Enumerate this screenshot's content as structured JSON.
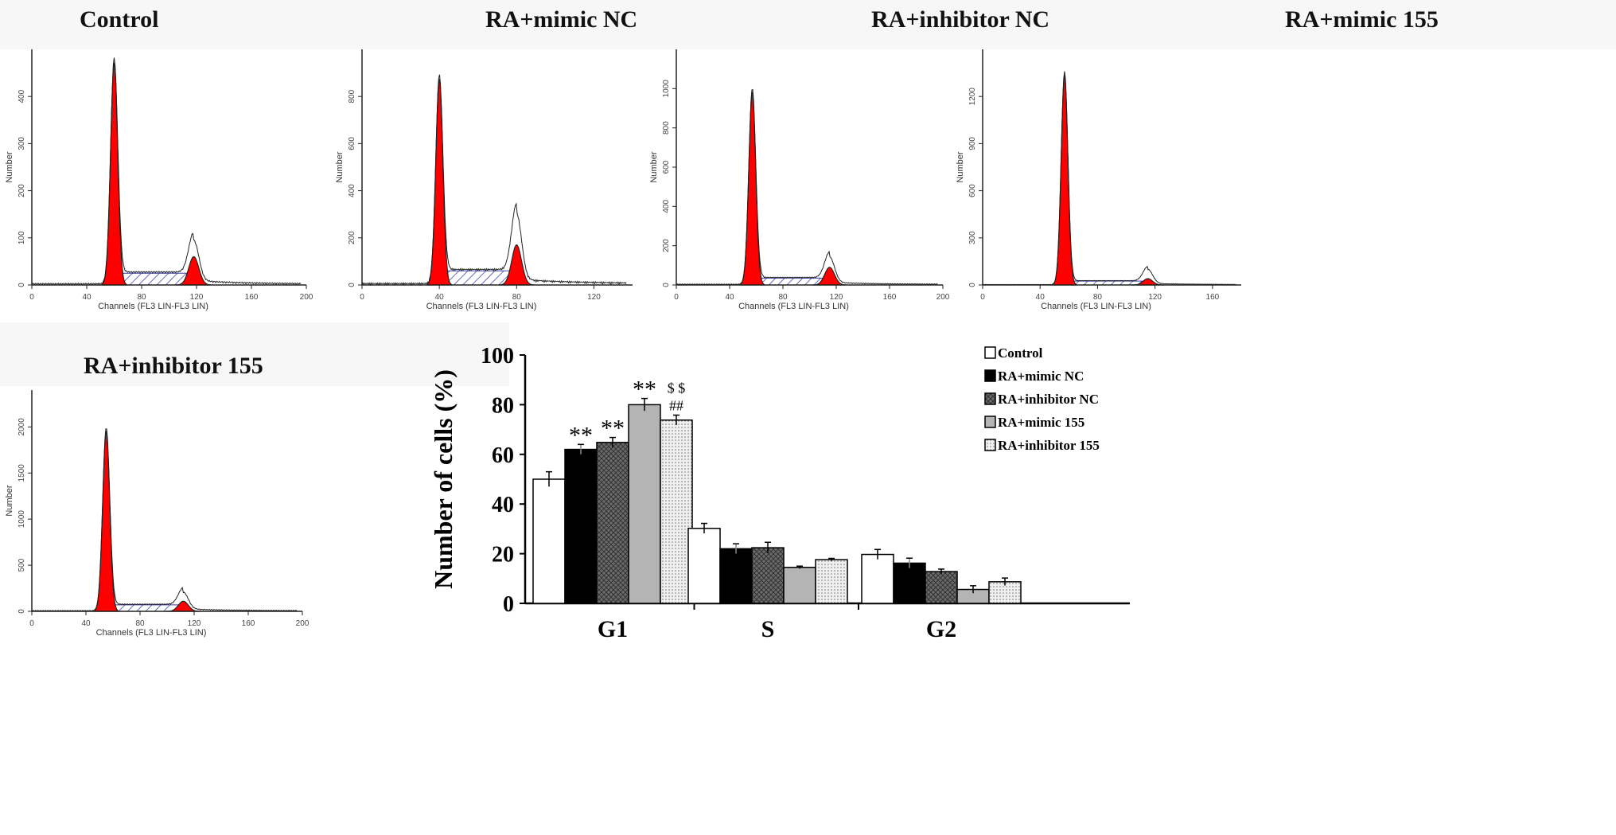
{
  "chart_data": [
    {
      "type": "histogram",
      "title": "Control",
      "xlabel": "Channels (FL3 LIN-FL3 LIN)",
      "ylabel": "Number",
      "xlim": [
        0,
        200
      ],
      "ylim": [
        0,
        500
      ],
      "xticks": [
        "0",
        "40",
        "80",
        "120",
        "160",
        "200"
      ],
      "yticks": [
        "0",
        "100",
        "200",
        "300",
        "400"
      ],
      "g1_peak": {
        "channel": 60,
        "count": 470
      },
      "g2_peak": {
        "channel": 118,
        "count": 60
      },
      "raw_g2_max": 85,
      "s_level": 25
    },
    {
      "type": "histogram",
      "title": "RA+mimic NC",
      "xlabel": "Channels (FL3 LIN-FL3 LIN)",
      "ylabel": "Number",
      "xlim": [
        0,
        140
      ],
      "ylim": [
        0,
        1000
      ],
      "xticks": [
        "0",
        "40",
        "80",
        "120"
      ],
      "yticks": [
        "0",
        "200",
        "400",
        "600",
        "800"
      ],
      "g1_peak": {
        "channel": 40,
        "count": 870
      },
      "g2_peak": {
        "channel": 80,
        "count": 170
      },
      "raw_g2_max": 280,
      "s_level": 60
    },
    {
      "type": "histogram",
      "title": "RA+inhibitor NC",
      "xlabel": "Channels (FL3 LIN-FL3 LIN)",
      "ylabel": "Number",
      "xlim": [
        0,
        200
      ],
      "ylim": [
        0,
        1200
      ],
      "xticks": [
        "0",
        "40",
        "80",
        "120",
        "160",
        "200"
      ],
      "yticks": [
        "0",
        "200",
        "400",
        "600",
        "800",
        "1000"
      ],
      "g1_peak": {
        "channel": 57,
        "count": 980
      },
      "g2_peak": {
        "channel": 115,
        "count": 90
      },
      "raw_g2_max": 130,
      "s_level": 35
    },
    {
      "type": "histogram",
      "title": "RA+mimic 155",
      "xlabel": "Channels (FL3 LIN-FL3 LIN)",
      "ylabel": "Number",
      "xlim": [
        0,
        180
      ],
      "ylim": [
        0,
        1500
      ],
      "xticks": [
        "0",
        "40",
        "80",
        "120",
        "160"
      ],
      "yticks": [
        "0",
        "300",
        "600",
        "900",
        "1200"
      ],
      "g1_peak": {
        "channel": 57,
        "count": 1330
      },
      "g2_peak": {
        "channel": 115,
        "count": 40
      },
      "raw_g2_max": 90,
      "s_level": 25
    },
    {
      "type": "histogram",
      "title": "RA+inhibitor 155",
      "xlabel": "Channels (FL3 LIN-FL3 LIN)",
      "ylabel": "Number",
      "xlim": [
        0,
        200
      ],
      "ylim": [
        0,
        2400
      ],
      "xticks": [
        "0",
        "40",
        "80",
        "120",
        "160",
        "200"
      ],
      "yticks": [
        "0",
        "500",
        "1000",
        "1500",
        "2000"
      ],
      "g1_peak": {
        "channel": 55,
        "count": 1950
      },
      "g2_peak": {
        "channel": 112,
        "count": 110
      },
      "raw_g2_max": 180,
      "s_level": 70
    },
    {
      "type": "bar",
      "title": "",
      "xlabel": "",
      "ylabel": "Number of cells (%)",
      "ylim": [
        0,
        100
      ],
      "yticks": [
        "0",
        "20",
        "40",
        "60",
        "80",
        "100"
      ],
      "categories": [
        "G1",
        "S",
        "G2"
      ],
      "legend_position": "top-right",
      "series": [
        {
          "name": "Control",
          "values": [
            50,
            30.2,
            19.7
          ],
          "errors": [
            3,
            2,
            2
          ],
          "fill": "#ffffff",
          "pattern": "none"
        },
        {
          "name": "RA+mimic NC",
          "values": [
            62,
            22,
            16.2
          ],
          "errors": [
            2,
            2,
            2
          ],
          "fill": "#000000",
          "pattern": "none"
        },
        {
          "name": "RA+inhibitor NC",
          "values": [
            64.8,
            22.4,
            12.8
          ],
          "errors": [
            2,
            2.2,
            1
          ],
          "fill": "#6a6a6a",
          "pattern": "crosshatch"
        },
        {
          "name": "RA+mimic 155",
          "values": [
            80,
            14.5,
            5.6
          ],
          "errors": [
            2.5,
            0.5,
            1.5
          ],
          "fill": "#b4b4b4",
          "pattern": "none"
        },
        {
          "name": "RA+inhibitor 155",
          "values": [
            73.8,
            17.6,
            8.7
          ],
          "errors": [
            2,
            0.5,
            1.5
          ],
          "fill": "#e6e6e6",
          "pattern": "dots"
        }
      ],
      "annotations": [
        {
          "category": "G1",
          "series": "RA+mimic NC",
          "text": "**"
        },
        {
          "category": "G1",
          "series": "RA+inhibitor NC",
          "text": "**"
        },
        {
          "category": "G1",
          "series": "RA+mimic 155",
          "text": "**"
        },
        {
          "category": "G1",
          "series": "RA+inhibitor 155",
          "text": "##"
        },
        {
          "category": "G1",
          "series": "RA+inhibitor 155",
          "text": "$ $"
        }
      ]
    }
  ],
  "colors": {
    "g_peak": "#ff0000",
    "s_phase": "#3a3aa8"
  }
}
